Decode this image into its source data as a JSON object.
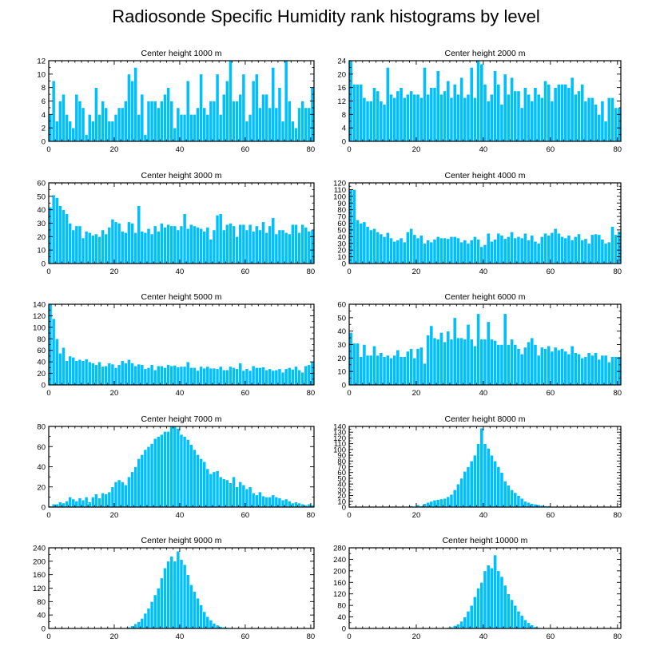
{
  "title": "Radiosonde Specific Humidity rank histograms by level",
  "style": {
    "bar_color": "#00bfff",
    "bar_edge": "#ffffff",
    "axis_color": "#000000"
  },
  "chart_data": [
    {
      "type": "bar",
      "title": "Center height 1000 m",
      "xlim": [
        0,
        81
      ],
      "ylim": [
        0,
        12
      ],
      "xticks": [
        0,
        20,
        40,
        60,
        80
      ],
      "yticks": [
        0,
        2,
        4,
        6,
        8,
        10,
        12
      ],
      "values": [
        4,
        9,
        3,
        6,
        7,
        4,
        3,
        2,
        7,
        6,
        5,
        1,
        4,
        3,
        8,
        4,
        6,
        5,
        3,
        3,
        4,
        5,
        5,
        6,
        10,
        9,
        11,
        4,
        7,
        1,
        6,
        6,
        6,
        5,
        6,
        7,
        8,
        6,
        2,
        5,
        4,
        4,
        9,
        4,
        4,
        5,
        10,
        5,
        4,
        6,
        6,
        10,
        4,
        7,
        9,
        12,
        6,
        6,
        7,
        10,
        3,
        4,
        9,
        10,
        5,
        7,
        7,
        5,
        11,
        5,
        8,
        3,
        12,
        6,
        3,
        2,
        5,
        6,
        5,
        5,
        8
      ]
    },
    {
      "type": "bar",
      "title": "Center height 2000 m",
      "xlim": [
        0,
        81
      ],
      "ylim": [
        0,
        24
      ],
      "xticks": [
        0,
        20,
        40,
        60,
        80
      ],
      "yticks": [
        0,
        4,
        8,
        12,
        16,
        20,
        24
      ],
      "values": [
        24,
        17,
        17,
        17,
        13,
        12,
        12,
        16,
        15,
        12,
        11,
        22,
        14,
        13,
        15,
        16,
        13,
        14,
        15,
        14,
        14,
        13,
        22,
        14,
        16,
        16,
        21,
        14,
        15,
        18,
        13,
        17,
        14,
        19,
        13,
        14,
        22,
        13,
        24,
        23,
        17,
        12,
        14,
        21,
        17,
        11,
        20,
        14,
        19,
        15,
        15,
        10,
        16,
        14,
        12,
        16,
        14,
        13,
        18,
        17,
        12,
        16,
        17,
        17,
        17,
        16,
        19,
        14,
        15,
        17,
        12,
        13,
        13,
        11,
        8,
        12,
        6,
        13,
        13,
        10,
        10
      ]
    },
    {
      "type": "bar",
      "title": "Center height 3000 m",
      "xlim": [
        0,
        81
      ],
      "ylim": [
        0,
        60
      ],
      "xticks": [
        0,
        20,
        40,
        60,
        80
      ],
      "yticks": [
        0,
        10,
        20,
        30,
        40,
        50,
        60
      ],
      "values": [
        42,
        51,
        49,
        43,
        40,
        37,
        30,
        25,
        28,
        28,
        19,
        24,
        23,
        21,
        22,
        20,
        25,
        22,
        27,
        33,
        31,
        30,
        24,
        23,
        31,
        30,
        23,
        43,
        24,
        23,
        26,
        22,
        28,
        24,
        30,
        27,
        29,
        28,
        28,
        25,
        28,
        37,
        26,
        29,
        28,
        27,
        26,
        24,
        27,
        18,
        25,
        36,
        37,
        25,
        29,
        30,
        28,
        20,
        29,
        29,
        25,
        29,
        24,
        28,
        25,
        31,
        23,
        28,
        34,
        22,
        25,
        25,
        23,
        22,
        29,
        29,
        23,
        29,
        27,
        24,
        25
      ]
    },
    {
      "type": "bar",
      "title": "Center height 4000 m",
      "xlim": [
        0,
        81
      ],
      "ylim": [
        0,
        120
      ],
      "xticks": [
        0,
        20,
        40,
        60,
        80
      ],
      "yticks": [
        0,
        10,
        20,
        30,
        40,
        50,
        60,
        70,
        80,
        90,
        100,
        110,
        120
      ],
      "values": [
        110,
        110,
        65,
        60,
        62,
        55,
        50,
        52,
        47,
        44,
        40,
        46,
        38,
        33,
        35,
        38,
        32,
        47,
        52,
        43,
        38,
        42,
        30,
        35,
        32,
        36,
        40,
        38,
        38,
        37,
        40,
        40,
        38,
        32,
        35,
        30,
        35,
        40,
        36,
        25,
        28,
        45,
        33,
        36,
        45,
        42,
        37,
        40,
        47,
        38,
        40,
        38,
        45,
        35,
        42,
        33,
        30,
        40,
        45,
        42,
        46,
        52,
        45,
        40,
        38,
        42,
        35,
        40,
        44,
        35,
        37,
        30,
        43,
        44,
        43,
        36,
        30,
        32,
        55,
        43,
        48
      ]
    },
    {
      "type": "bar",
      "title": "Center height 5000 m",
      "xlim": [
        0,
        81
      ],
      "ylim": [
        0,
        140
      ],
      "xticks": [
        0,
        20,
        40,
        60,
        80
      ],
      "yticks": [
        0,
        20,
        40,
        60,
        80,
        100,
        120,
        140
      ],
      "values": [
        140,
        115,
        80,
        55,
        65,
        42,
        50,
        48,
        42,
        44,
        42,
        45,
        40,
        38,
        35,
        40,
        32,
        33,
        38,
        36,
        30,
        35,
        42,
        38,
        44,
        38,
        33,
        36,
        35,
        28,
        30,
        35,
        26,
        33,
        33,
        30,
        35,
        33,
        34,
        31,
        32,
        32,
        40,
        30,
        30,
        25,
        32,
        29,
        32,
        29,
        29,
        28,
        32,
        26,
        26,
        32,
        30,
        28,
        38,
        25,
        28,
        25,
        33,
        30,
        30,
        31,
        26,
        28,
        25,
        26,
        28,
        22,
        28,
        30,
        27,
        32,
        26,
        22,
        33,
        35,
        40
      ]
    },
    {
      "type": "bar",
      "title": "Center height 6000 m",
      "xlim": [
        0,
        81
      ],
      "ylim": [
        0,
        60
      ],
      "xticks": [
        0,
        20,
        40,
        60,
        80
      ],
      "yticks": [
        0,
        10,
        20,
        30,
        40,
        50,
        60
      ],
      "values": [
        39,
        31,
        31,
        21,
        30,
        22,
        22,
        29,
        22,
        24,
        21,
        22,
        20,
        22,
        26,
        21,
        21,
        25,
        27,
        20,
        27,
        28,
        16,
        37,
        44,
        35,
        34,
        39,
        32,
        40,
        34,
        50,
        35,
        35,
        34,
        45,
        34,
        29,
        53,
        34,
        34,
        47,
        34,
        33,
        30,
        30,
        53,
        30,
        34,
        30,
        27,
        23,
        28,
        32,
        35,
        30,
        22,
        28,
        27,
        29,
        25,
        28,
        26,
        27,
        25,
        23,
        29,
        24,
        23,
        20,
        21,
        24,
        22,
        24,
        19,
        22,
        22,
        17,
        21,
        21,
        21
      ]
    },
    {
      "type": "bar",
      "title": "Center height 7000 m",
      "xlim": [
        0,
        81
      ],
      "ylim": [
        0,
        80
      ],
      "xticks": [
        0,
        20,
        40,
        60,
        80
      ],
      "yticks": [
        0,
        20,
        40,
        60,
        80
      ],
      "values": [
        1,
        3,
        3,
        5,
        4,
        6,
        10,
        8,
        6,
        9,
        7,
        10,
        5,
        10,
        13,
        9,
        14,
        13,
        15,
        20,
        25,
        27,
        25,
        22,
        30,
        35,
        40,
        48,
        52,
        57,
        60,
        63,
        68,
        70,
        72,
        75,
        75,
        80,
        80,
        78,
        72,
        70,
        67,
        62,
        57,
        52,
        48,
        45,
        38,
        33,
        35,
        36,
        30,
        28,
        27,
        24,
        30,
        20,
        25,
        22,
        18,
        20,
        14,
        12,
        15,
        11,
        10,
        10,
        12,
        10,
        9,
        7,
        8,
        6,
        4,
        5,
        4,
        3,
        2,
        3,
        2
      ]
    },
    {
      "type": "bar",
      "title": "Center height 8000 m",
      "xlim": [
        0,
        81
      ],
      "ylim": [
        0,
        140
      ],
      "xticks": [
        0,
        20,
        40,
        60,
        80
      ],
      "yticks": [
        0,
        10,
        20,
        30,
        40,
        50,
        60,
        70,
        80,
        90,
        100,
        110,
        120,
        130,
        140
      ],
      "values": [
        0,
        0,
        0,
        0,
        0,
        0,
        0,
        0,
        0,
        0,
        0,
        0,
        0,
        0,
        0,
        0,
        0,
        1,
        2,
        1,
        4,
        2,
        6,
        8,
        10,
        12,
        13,
        14,
        15,
        18,
        22,
        30,
        40,
        50,
        62,
        70,
        80,
        90,
        110,
        137,
        110,
        102,
        90,
        80,
        70,
        60,
        45,
        38,
        30,
        25,
        20,
        15,
        10,
        8,
        6,
        5,
        4,
        3,
        2,
        2,
        1,
        1,
        1,
        0,
        0,
        0,
        0,
        0,
        0,
        0,
        0,
        0,
        0,
        0,
        0,
        0,
        0,
        0,
        0,
        0,
        0
      ]
    },
    {
      "type": "bar",
      "title": "Center height 9000 m",
      "xlim": [
        0,
        81
      ],
      "ylim": [
        0,
        240
      ],
      "xticks": [
        0,
        20,
        40,
        60,
        80
      ],
      "yticks": [
        0,
        40,
        80,
        120,
        160,
        200,
        240
      ],
      "values": [
        0,
        0,
        0,
        0,
        0,
        0,
        0,
        0,
        0,
        0,
        0,
        0,
        0,
        0,
        0,
        0,
        0,
        0,
        0,
        0,
        0,
        0,
        1,
        2,
        4,
        8,
        14,
        20,
        30,
        45,
        60,
        80,
        100,
        120,
        150,
        180,
        200,
        215,
        200,
        230,
        205,
        190,
        160,
        130,
        110,
        90,
        70,
        50,
        35,
        25,
        15,
        10,
        6,
        4,
        3,
        2,
        1,
        1,
        0,
        0,
        0,
        0,
        0,
        0,
        0,
        0,
        0,
        0,
        0,
        0,
        0,
        0,
        0,
        0,
        0,
        0,
        0,
        0,
        0,
        0,
        0
      ]
    },
    {
      "type": "bar",
      "title": "Center height 10000 m",
      "xlim": [
        0,
        81
      ],
      "ylim": [
        0,
        280
      ],
      "xticks": [
        0,
        20,
        40,
        60,
        80
      ],
      "yticks": [
        0,
        40,
        80,
        120,
        160,
        200,
        240,
        280
      ],
      "values": [
        0,
        0,
        0,
        0,
        0,
        0,
        0,
        0,
        0,
        0,
        0,
        0,
        0,
        0,
        0,
        0,
        0,
        0,
        0,
        0,
        0,
        0,
        0,
        0,
        0,
        0,
        0,
        0,
        1,
        3,
        5,
        10,
        15,
        25,
        40,
        60,
        80,
        110,
        140,
        160,
        200,
        220,
        210,
        255,
        200,
        180,
        150,
        120,
        100,
        80,
        60,
        45,
        30,
        20,
        12,
        6,
        3,
        2,
        1,
        0,
        0,
        0,
        0,
        0,
        0,
        0,
        0,
        0,
        0,
        0,
        0,
        0,
        0,
        0,
        0,
        0,
        0,
        0,
        0,
        0,
        0
      ]
    }
  ]
}
